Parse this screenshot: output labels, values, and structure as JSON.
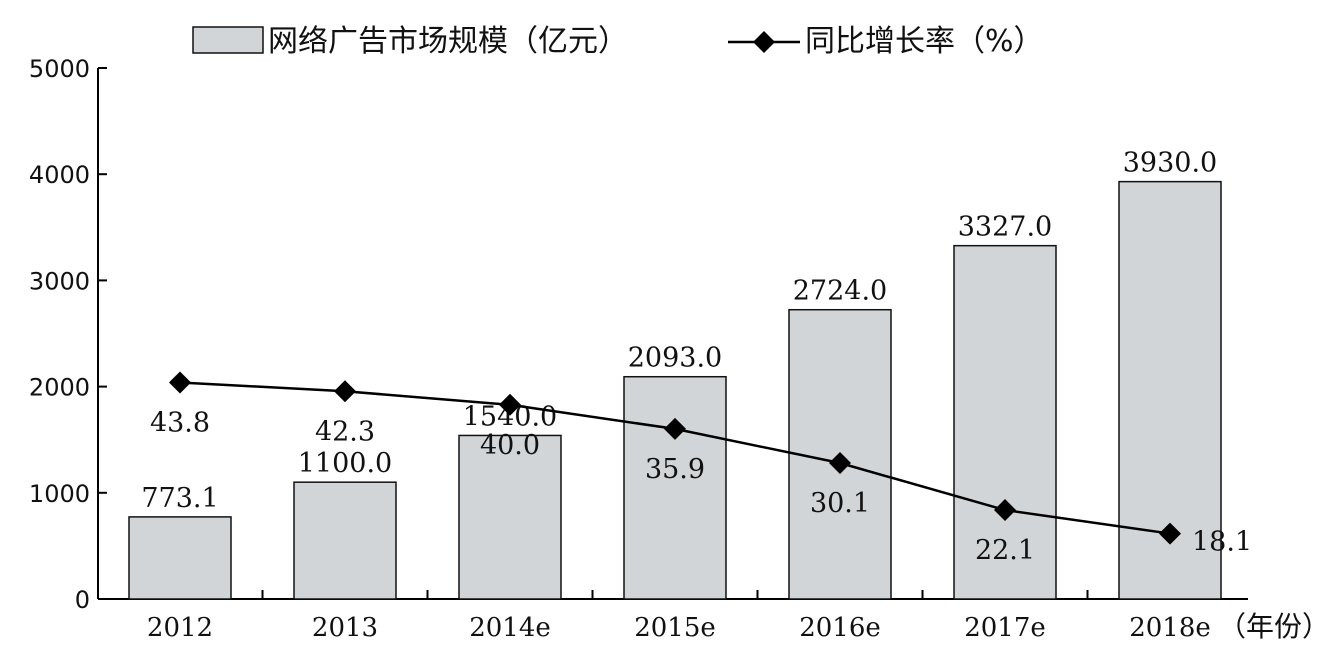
{
  "chart_data": {
    "type": "bar",
    "categories": [
      "2012",
      "2013",
      "2014e",
      "2015e",
      "2016e",
      "2017e",
      "2018e"
    ],
    "series": [
      {
        "name": "网络广告市场规模（亿元）",
        "type": "bar",
        "axis": "left",
        "values": [
          773.1,
          1100.0,
          1540.0,
          2093.0,
          2724.0,
          3327.0,
          3930.0
        ],
        "labels": [
          "773.1",
          "1100.0",
          "1540.0",
          "2093.0",
          "2724.0",
          "3327.0",
          "3930.0"
        ],
        "color": "#d2d5d8"
      },
      {
        "name": "同比增长率（%）",
        "type": "line",
        "marker": "diamond",
        "values": [
          43.8,
          42.3,
          40.0,
          35.9,
          30.1,
          22.1,
          18.1
        ],
        "labels": [
          "43.8",
          "42.3",
          "40.0",
          "35.9",
          "30.1",
          "22.1",
          "18.1"
        ],
        "color": "#000000"
      }
    ],
    "xunit": "（年份）",
    "ylim": [
      0,
      5000
    ],
    "yticks": [
      "0",
      "1000",
      "2000",
      "3000",
      "4000",
      "5000"
    ],
    "legend": "top",
    "grid": false
  }
}
